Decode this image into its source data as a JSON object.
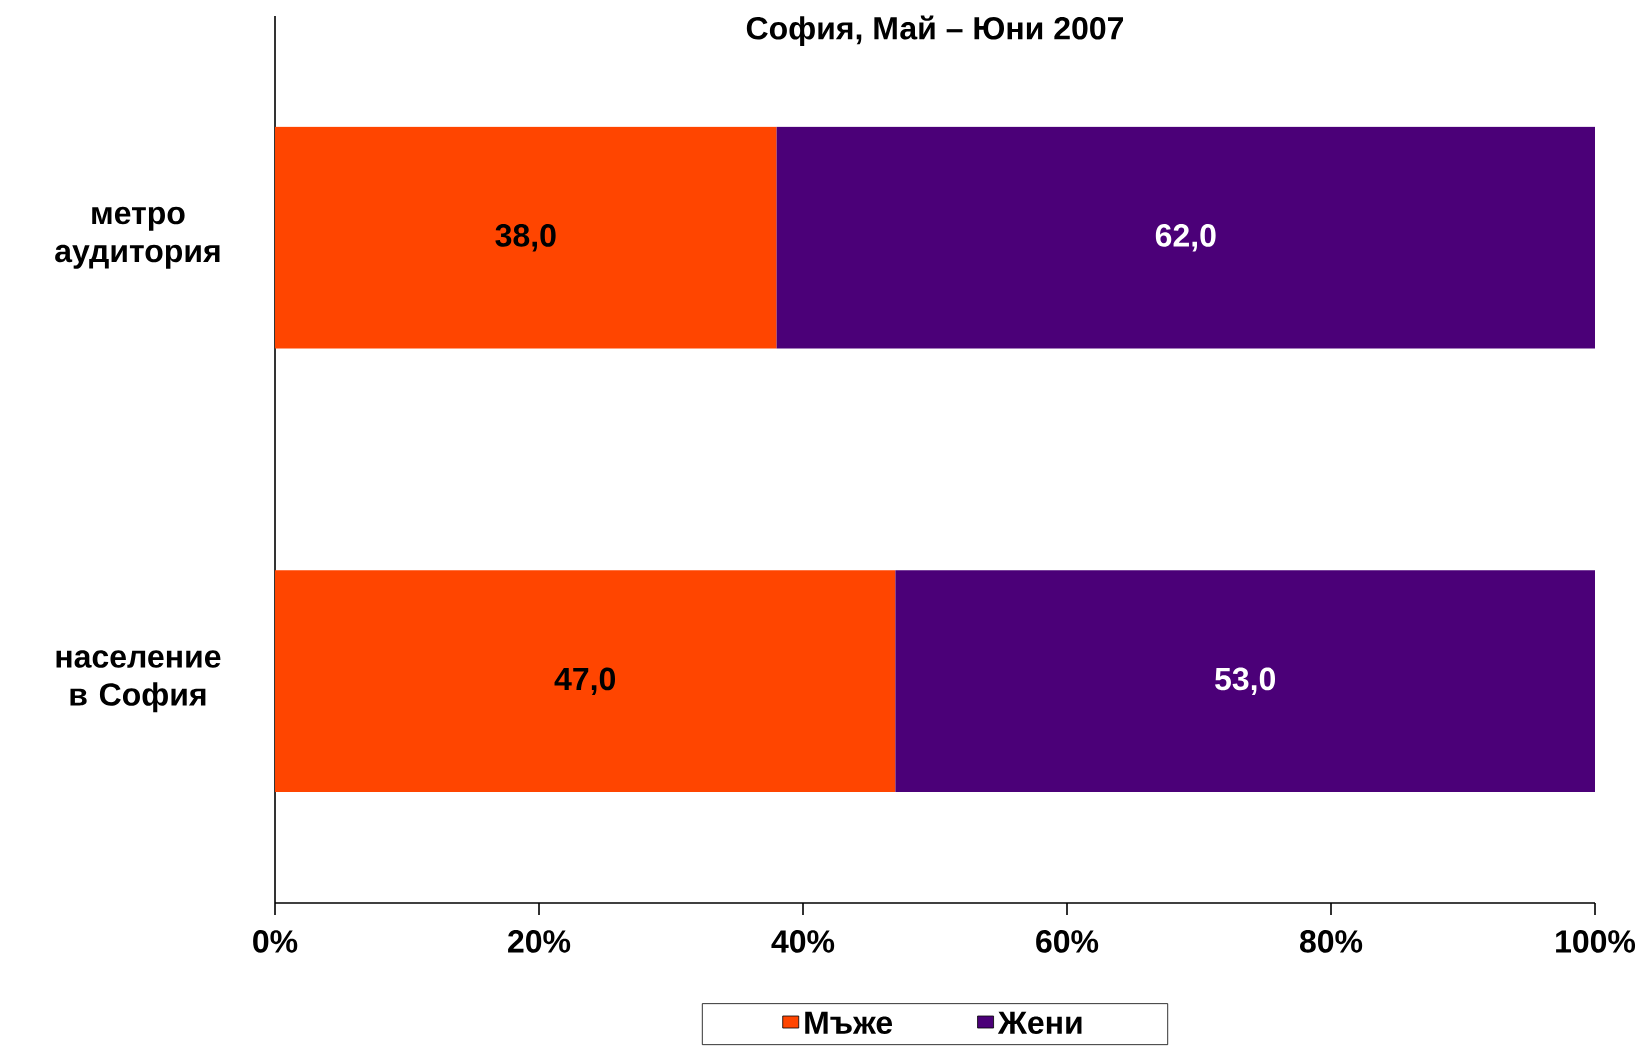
{
  "chart_data": {
    "type": "bar",
    "orientation": "horizontal",
    "stacked": true,
    "title": "София, Май – Юни 2007",
    "categories": [
      "метро аудитория",
      "население в София"
    ],
    "series": [
      {
        "name": "Мъже",
        "color": "#ff4500",
        "values": [
          38,
          47
        ],
        "value_labels": [
          "38,0",
          "47,0"
        ]
      },
      {
        "name": "Жени",
        "color": "#4b0078",
        "values": [
          62,
          53
        ],
        "value_labels": [
          "62,0",
          "53,0"
        ]
      }
    ],
    "xlim": [
      0,
      100
    ],
    "xticks": [
      {
        "value": 0,
        "label": "0%"
      },
      {
        "value": 20,
        "label": "20%"
      },
      {
        "value": 40,
        "label": "40%"
      },
      {
        "value": 60,
        "label": "60%"
      },
      {
        "value": 80,
        "label": "80%"
      },
      {
        "value": 100,
        "label": "100%"
      }
    ],
    "legend": "bottom",
    "grid": false
  }
}
